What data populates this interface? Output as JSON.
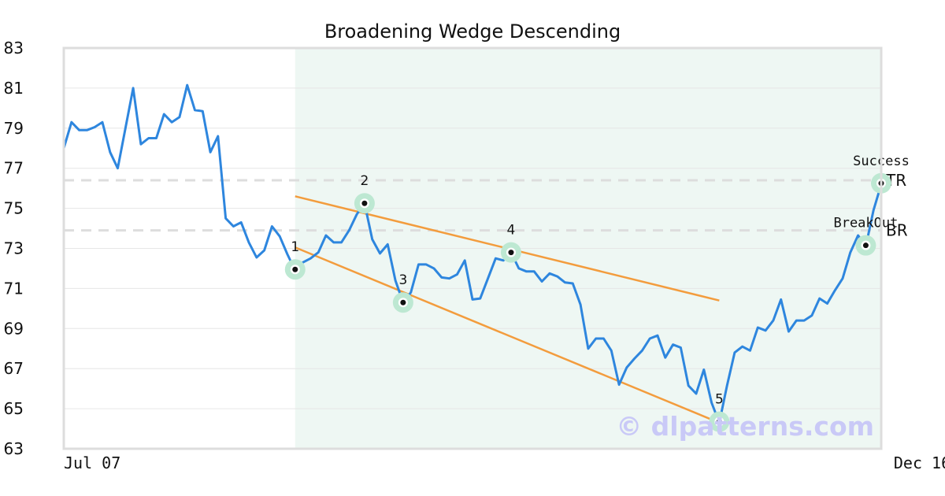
{
  "chart_data": {
    "type": "line",
    "title": "Broadening Wedge Descending",
    "xlabel": "",
    "ylabel": "",
    "ylim": [
      63,
      83
    ],
    "y_ticks": [
      "83",
      "81",
      "79",
      "77",
      "75",
      "73",
      "71",
      "69",
      "67",
      "65",
      "63"
    ],
    "x_ticks": [
      {
        "label": "Jul 07",
        "x": 0
      },
      {
        "label": "Dec 16",
        "x": 115
      }
    ],
    "grid": true,
    "colors": {
      "price": "#2e86de",
      "trendline": "#f39c3d",
      "pattern_zone": "#eef7f3",
      "pivot_halo": "#bde8d2",
      "level_line": "#dddddd",
      "frame": "#dddddd"
    },
    "series": [
      {
        "values": [
          78.0,
          79.3,
          78.9,
          78.9,
          79.05,
          79.3,
          77.8,
          77.0,
          79.0,
          81.0,
          78.2,
          78.5,
          78.5,
          79.7,
          79.3,
          79.55,
          81.15,
          79.9,
          79.85,
          77.8,
          78.6,
          74.5,
          74.1,
          74.3,
          73.3,
          72.55,
          72.9,
          74.1,
          73.6,
          72.7,
          71.9,
          72.3,
          72.5,
          72.8,
          73.65,
          73.3,
          73.3,
          73.9,
          74.7,
          75.25,
          73.45,
          72.75,
          73.2,
          71.4,
          70.3,
          70.8,
          72.2,
          72.2,
          72.0,
          71.55,
          71.5,
          71.7,
          72.4,
          70.45,
          70.5,
          71.5,
          72.5,
          72.4,
          72.8,
          72.0,
          71.85,
          71.85,
          71.35,
          71.75,
          71.6,
          71.3,
          71.25,
          70.2,
          68.0,
          68.5,
          68.5,
          67.9,
          66.2,
          67.05,
          67.5,
          67.9,
          68.5,
          68.65,
          67.55,
          68.2,
          68.05,
          66.15,
          65.75,
          66.95,
          65.3,
          64.3,
          66.15,
          67.8,
          68.1,
          67.9,
          69.05,
          68.9,
          69.4,
          70.45,
          68.85,
          69.4,
          69.4,
          69.65,
          70.5,
          70.25,
          70.9,
          71.5,
          72.8,
          73.65,
          73.1,
          74.9,
          76.2
        ]
      }
    ],
    "pattern_zone": {
      "x_start": 30,
      "x_end": 106
    },
    "trendlines": [
      {
        "x1": 30,
        "y1": 73.05,
        "x2": 85,
        "y2": 64.3
      },
      {
        "x1": 30,
        "y1": 75.6,
        "x2": 85,
        "y2": 70.4
      }
    ],
    "levels": [
      {
        "label": "TR",
        "y": 76.4
      },
      {
        "label": "BR",
        "y": 73.9
      }
    ],
    "pivots": [
      {
        "label": "1",
        "x": 30,
        "y": 71.95,
        "label_pos": "above"
      },
      {
        "label": "2",
        "x": 39,
        "y": 75.25,
        "label_pos": "above"
      },
      {
        "label": "3",
        "x": 44,
        "y": 70.3,
        "label_pos": "above"
      },
      {
        "label": "4",
        "x": 58,
        "y": 72.8,
        "label_pos": "above"
      },
      {
        "label": "5",
        "x": 85,
        "y": 64.35,
        "label_pos": "above"
      }
    ],
    "annotations": [
      {
        "label": "BreakOut",
        "x": 104,
        "y": 73.15
      },
      {
        "label": "Success",
        "x": 106,
        "y": 76.25
      }
    ],
    "watermark": "© dlpatterns.com"
  }
}
